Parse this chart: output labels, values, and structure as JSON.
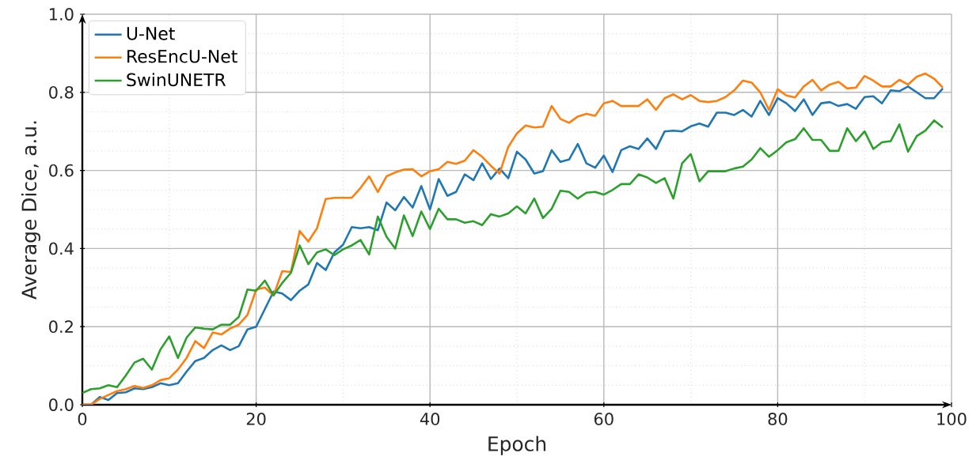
{
  "chart_data": {
    "type": "line",
    "xlabel": "Epoch",
    "ylabel": "Average Dice, a.u.",
    "x": [
      0,
      1,
      2,
      3,
      4,
      5,
      6,
      7,
      8,
      9,
      10,
      11,
      12,
      13,
      14,
      15,
      16,
      17,
      18,
      19,
      20,
      21,
      22,
      23,
      24,
      25,
      26,
      27,
      28,
      29,
      30,
      31,
      32,
      33,
      34,
      35,
      36,
      37,
      38,
      39,
      40,
      41,
      42,
      43,
      44,
      45,
      46,
      47,
      48,
      49,
      50,
      51,
      52,
      53,
      54,
      55,
      56,
      57,
      58,
      59,
      60,
      61,
      62,
      63,
      64,
      65,
      66,
      67,
      68,
      69,
      70,
      71,
      72,
      73,
      74,
      75,
      76,
      77,
      78,
      79,
      80,
      81,
      82,
      83,
      84,
      85,
      86,
      87,
      88,
      89,
      90,
      91,
      92,
      93,
      94,
      95,
      96,
      97,
      98,
      99
    ],
    "series": [
      {
        "name": "U-Net",
        "color": "#1f77b4",
        "values": [
          0.0,
          0.0,
          0.02,
          0.012,
          0.03,
          0.032,
          0.042,
          0.04,
          0.045,
          0.055,
          0.05,
          0.055,
          0.085,
          0.112,
          0.12,
          0.14,
          0.152,
          0.14,
          0.15,
          0.193,
          0.2,
          0.245,
          0.29,
          0.285,
          0.268,
          0.292,
          0.308,
          0.363,
          0.345,
          0.39,
          0.41,
          0.455,
          0.452,
          0.455,
          0.447,
          0.518,
          0.498,
          0.532,
          0.505,
          0.56,
          0.5,
          0.578,
          0.535,
          0.545,
          0.59,
          0.575,
          0.618,
          0.578,
          0.605,
          0.58,
          0.648,
          0.628,
          0.592,
          0.598,
          0.652,
          0.622,
          0.628,
          0.668,
          0.618,
          0.607,
          0.638,
          0.596,
          0.652,
          0.662,
          0.655,
          0.682,
          0.655,
          0.7,
          0.702,
          0.7,
          0.713,
          0.72,
          0.712,
          0.748,
          0.748,
          0.742,
          0.755,
          0.738,
          0.778,
          0.742,
          0.785,
          0.772,
          0.752,
          0.782,
          0.742,
          0.772,
          0.775,
          0.765,
          0.77,
          0.758,
          0.788,
          0.79,
          0.772,
          0.805,
          0.803,
          0.815,
          0.8,
          0.785,
          0.785,
          0.81
        ]
      },
      {
        "name": "ResEncU-Net",
        "color": "#ff7f0e",
        "values": [
          0.0,
          0.0,
          0.015,
          0.025,
          0.035,
          0.04,
          0.048,
          0.043,
          0.05,
          0.063,
          0.068,
          0.09,
          0.12,
          0.163,
          0.145,
          0.185,
          0.18,
          0.195,
          0.205,
          0.23,
          0.295,
          0.3,
          0.28,
          0.342,
          0.34,
          0.445,
          0.418,
          0.452,
          0.527,
          0.53,
          0.53,
          0.53,
          0.555,
          0.585,
          0.545,
          0.585,
          0.595,
          0.602,
          0.603,
          0.585,
          0.598,
          0.603,
          0.622,
          0.617,
          0.625,
          0.652,
          0.635,
          0.612,
          0.592,
          0.66,
          0.695,
          0.715,
          0.71,
          0.712,
          0.765,
          0.732,
          0.722,
          0.738,
          0.745,
          0.74,
          0.772,
          0.778,
          0.765,
          0.765,
          0.765,
          0.782,
          0.755,
          0.785,
          0.795,
          0.782,
          0.793,
          0.778,
          0.775,
          0.778,
          0.788,
          0.805,
          0.83,
          0.825,
          0.8,
          0.755,
          0.808,
          0.792,
          0.787,
          0.815,
          0.832,
          0.805,
          0.82,
          0.827,
          0.81,
          0.812,
          0.842,
          0.83,
          0.815,
          0.815,
          0.832,
          0.82,
          0.84,
          0.848,
          0.835,
          0.812
        ]
      },
      {
        "name": "SwinUNETR",
        "color": "#2ca02c",
        "values": [
          0.03,
          0.04,
          0.042,
          0.05,
          0.045,
          0.075,
          0.108,
          0.118,
          0.09,
          0.142,
          0.175,
          0.12,
          0.172,
          0.198,
          0.195,
          0.193,
          0.205,
          0.205,
          0.225,
          0.295,
          0.292,
          0.318,
          0.28,
          0.312,
          0.338,
          0.408,
          0.36,
          0.39,
          0.398,
          0.383,
          0.398,
          0.408,
          0.422,
          0.385,
          0.482,
          0.43,
          0.4,
          0.485,
          0.432,
          0.495,
          0.45,
          0.502,
          0.475,
          0.475,
          0.466,
          0.47,
          0.46,
          0.488,
          0.482,
          0.49,
          0.508,
          0.49,
          0.528,
          0.478,
          0.502,
          0.548,
          0.545,
          0.528,
          0.543,
          0.545,
          0.538,
          0.55,
          0.565,
          0.565,
          0.59,
          0.582,
          0.568,
          0.58,
          0.528,
          0.618,
          0.642,
          0.572,
          0.598,
          0.598,
          0.598,
          0.605,
          0.61,
          0.628,
          0.657,
          0.635,
          0.652,
          0.672,
          0.68,
          0.708,
          0.678,
          0.678,
          0.65,
          0.65,
          0.708,
          0.675,
          0.7,
          0.655,
          0.672,
          0.675,
          0.718,
          0.648,
          0.688,
          0.702,
          0.728,
          0.71
        ]
      }
    ],
    "xlim": [
      0,
      100
    ],
    "xticks": [
      0,
      20,
      40,
      60,
      80,
      100
    ],
    "ylim": [
      0,
      1
    ],
    "yticks": [
      {
        "value": 0,
        "label": "0.0"
      },
      {
        "value": 0.2,
        "label": "0.2"
      },
      {
        "value": 0.4,
        "label": "0.4"
      },
      {
        "value": 0.6,
        "label": "0.6"
      },
      {
        "value": 0.8,
        "label": "0.8"
      },
      {
        "value": 1,
        "label": "1.0"
      }
    ],
    "grid": true,
    "legend": "top left",
    "marker": "none",
    "line_style": "solid"
  }
}
